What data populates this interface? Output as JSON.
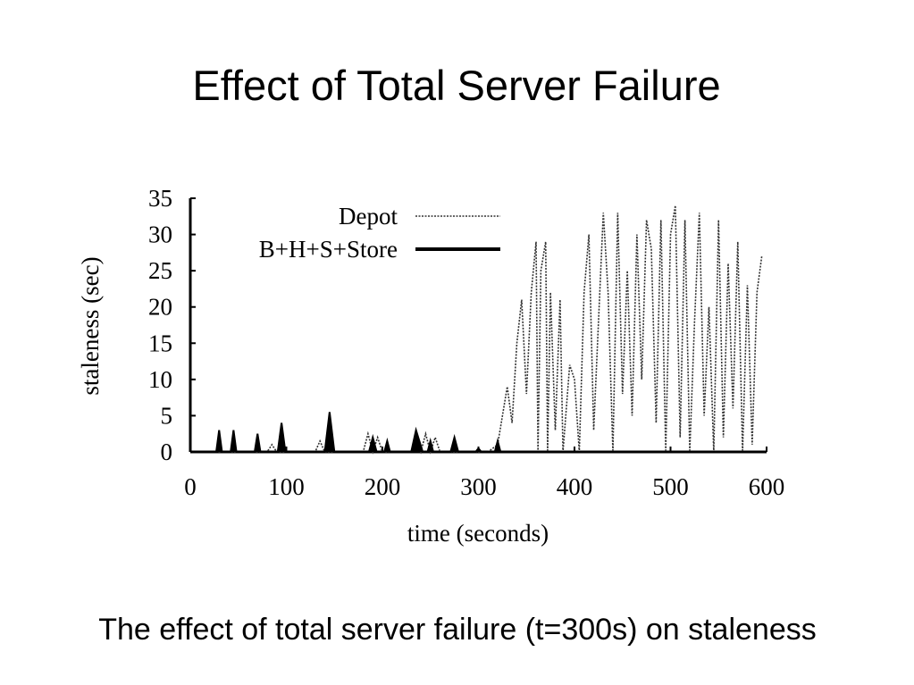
{
  "title": "Effect of Total Server Failure",
  "caption": "The effect of total server failure (t=300s) on staleness",
  "chart_data": {
    "type": "line",
    "xlabel": "time (seconds)",
    "ylabel": "staleness (sec)",
    "xlim": [
      0,
      600
    ],
    "ylim": [
      0,
      35
    ],
    "xticks": [
      0,
      100,
      200,
      300,
      400,
      500,
      600
    ],
    "yticks": [
      0,
      5,
      10,
      15,
      20,
      25,
      30,
      35
    ],
    "legend": "top",
    "series": [
      {
        "name": "Depot",
        "color": "#333333",
        "style": "dotted",
        "x": [
          0,
          80,
          85,
          90,
          130,
          135,
          140,
          180,
          185,
          190,
          195,
          200,
          230,
          235,
          240,
          245,
          250,
          255,
          260,
          310,
          320,
          325,
          330,
          335,
          340,
          345,
          350,
          355,
          360,
          362,
          365,
          370,
          372,
          375,
          380,
          385,
          388,
          395,
          400,
          405,
          410,
          415,
          420,
          425,
          430,
          435,
          440,
          445,
          450,
          455,
          460,
          465,
          470,
          475,
          480,
          485,
          490,
          495,
          500,
          505,
          510,
          515,
          520,
          525,
          530,
          535,
          540,
          545,
          550,
          555,
          560,
          565,
          570,
          575,
          580,
          585,
          590,
          595
        ],
        "values": [
          0,
          0,
          1,
          0,
          0,
          1.5,
          0,
          0,
          2.5,
          0,
          2,
          0,
          0,
          2,
          0,
          2.5,
          0,
          2,
          0,
          0,
          1,
          5,
          9,
          4,
          15,
          21,
          8,
          22,
          29,
          0,
          25,
          29,
          0,
          22,
          3,
          21,
          0,
          12,
          10,
          0,
          22,
          30,
          3,
          18,
          33,
          22,
          0,
          33,
          8,
          25,
          5,
          30,
          10,
          32,
          28,
          4,
          32,
          0,
          30,
          34,
          2,
          32,
          0,
          18,
          33,
          5,
          20,
          0,
          32,
          2,
          26,
          6,
          29,
          0,
          23,
          1,
          22,
          27
        ]
      },
      {
        "name": "B+H+S+Store",
        "color": "#000000",
        "style": "solid",
        "x": [
          0,
          27,
          30,
          33,
          42,
          45,
          48,
          67,
          70,
          73,
          91,
          95,
          99,
          140,
          145,
          150,
          186,
          190,
          194,
          202,
          205,
          208,
          230,
          235,
          242,
          247,
          250,
          253,
          271,
          275,
          279,
          297,
          300,
          303,
          317,
          320,
          323,
          600
        ],
        "values": [
          0,
          0,
          3,
          0,
          0,
          3,
          0,
          0,
          2.5,
          0,
          0,
          4,
          0,
          0,
          5.5,
          0,
          0,
          2,
          0,
          0,
          1.5,
          0,
          0,
          3,
          0,
          0,
          1.5,
          0,
          0,
          2,
          0,
          0,
          0.5,
          0,
          0,
          1.5,
          0,
          0
        ]
      }
    ]
  }
}
